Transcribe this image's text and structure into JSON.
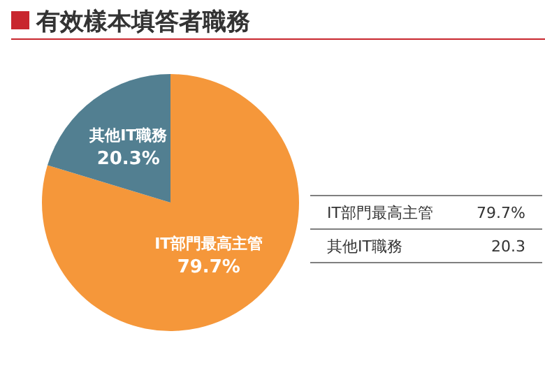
{
  "chart_data": {
    "type": "pie",
    "title": "有效樣本填答者職務",
    "categories": [
      "IT部門最高主管",
      "其他IT職務"
    ],
    "values": [
      79.7,
      20.3
    ],
    "colors": [
      "#f5973a",
      "#527f91"
    ],
    "value_labels": [
      "79.7%",
      "20.3%"
    ],
    "annotations": [
      "IT部門最高主管",
      "79.7%",
      "其他IT職務",
      "20.3"
    ]
  }
}
